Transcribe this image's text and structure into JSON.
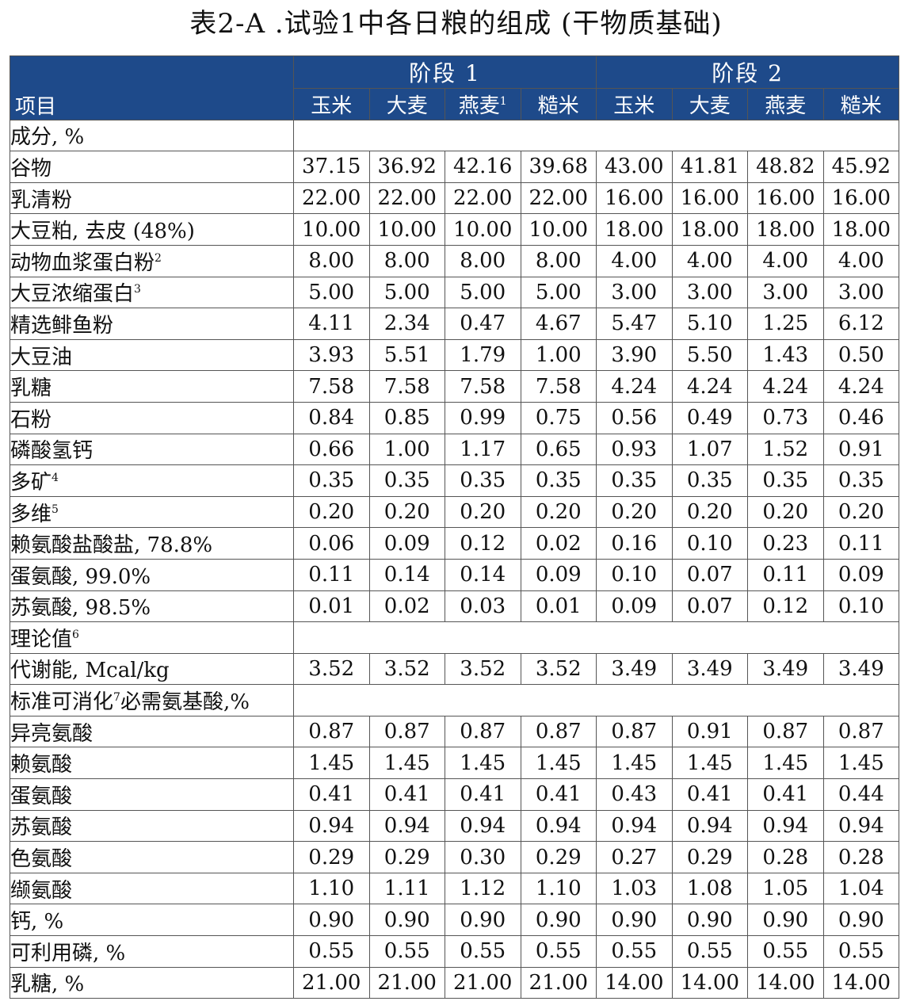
{
  "title": "表2-A .试验1中各日粮的组成 (干物质基础)",
  "header": {
    "item_label": "项目",
    "stage1": "阶段 1",
    "stage2": "阶段 2",
    "cols": [
      "玉米",
      "大麦",
      "燕麦",
      "糙米",
      "玉米",
      "大麦",
      "燕麦",
      "糙米"
    ],
    "col_sups": [
      "",
      "",
      "1",
      "",
      "",
      "",
      "",
      ""
    ]
  },
  "colors": {
    "header_bg": "#1e4a8a",
    "header_text": "#ffffff",
    "border": "#555555"
  },
  "rows": [
    {
      "label": "成分, %",
      "sup": "",
      "section": true
    },
    {
      "label": "谷物",
      "sup": "",
      "values": [
        "37.15",
        "36.92",
        "42.16",
        "39.68",
        "43.00",
        "41.81",
        "48.82",
        "45.92"
      ]
    },
    {
      "label": "乳清粉",
      "sup": "",
      "values": [
        "22.00",
        "22.00",
        "22.00",
        "22.00",
        "16.00",
        "16.00",
        "16.00",
        "16.00"
      ]
    },
    {
      "label": "大豆粕, 去皮 (48%)",
      "sup": "",
      "values": [
        "10.00",
        "10.00",
        "10.00",
        "10.00",
        "18.00",
        "18.00",
        "18.00",
        "18.00"
      ]
    },
    {
      "label": "动物血浆蛋白粉",
      "sup": "2",
      "values": [
        "8.00",
        "8.00",
        "8.00",
        "8.00",
        "4.00",
        "4.00",
        "4.00",
        "4.00"
      ]
    },
    {
      "label": "大豆浓缩蛋白",
      "sup": "3",
      "values": [
        "5.00",
        "5.00",
        "5.00",
        "5.00",
        "3.00",
        "3.00",
        "3.00",
        "3.00"
      ]
    },
    {
      "label": "精选鲱鱼粉",
      "sup": "",
      "values": [
        "4.11",
        "2.34",
        "0.47",
        "4.67",
        "5.47",
        "5.10",
        "1.25",
        "6.12"
      ]
    },
    {
      "label": "大豆油",
      "sup": "",
      "values": [
        "3.93",
        "5.51",
        "1.79",
        "1.00",
        "3.90",
        "5.50",
        "1.43",
        "0.50"
      ]
    },
    {
      "label": "乳糖",
      "sup": "",
      "values": [
        "7.58",
        "7.58",
        "7.58",
        "7.58",
        "4.24",
        "4.24",
        "4.24",
        "4.24"
      ]
    },
    {
      "label": "石粉",
      "sup": "",
      "values": [
        "0.84",
        "0.85",
        "0.99",
        "0.75",
        "0.56",
        "0.49",
        "0.73",
        "0.46"
      ]
    },
    {
      "label": "磷酸氢钙",
      "sup": "",
      "values": [
        "0.66",
        "1.00",
        "1.17",
        "0.65",
        "0.93",
        "1.07",
        "1.52",
        "0.91"
      ]
    },
    {
      "label": "多矿",
      "sup": "4",
      "values": [
        "0.35",
        "0.35",
        "0.35",
        "0.35",
        "0.35",
        "0.35",
        "0.35",
        "0.35"
      ]
    },
    {
      "label": "多维",
      "sup": "5",
      "values": [
        "0.20",
        "0.20",
        "0.20",
        "0.20",
        "0.20",
        "0.20",
        "0.20",
        "0.20"
      ]
    },
    {
      "label": "赖氨酸盐酸盐, 78.8%",
      "sup": "",
      "values": [
        "0.06",
        "0.09",
        "0.12",
        "0.02",
        "0.16",
        "0.10",
        "0.23",
        "0.11"
      ]
    },
    {
      "label": "蛋氨酸, 99.0%",
      "sup": "",
      "values": [
        "0.11",
        "0.14",
        "0.14",
        "0.09",
        "0.10",
        "0.07",
        "0.11",
        "0.09"
      ]
    },
    {
      "label": "苏氨酸, 98.5%",
      "sup": "",
      "values": [
        "0.01",
        "0.02",
        "0.03",
        "0.01",
        "0.09",
        "0.07",
        "0.12",
        "0.10"
      ]
    },
    {
      "label": "理论值",
      "sup": "6",
      "section": true
    },
    {
      "label": "代谢能, Mcal/kg",
      "sup": "",
      "values": [
        "3.52",
        "3.52",
        "3.52",
        "3.52",
        "3.49",
        "3.49",
        "3.49",
        "3.49"
      ]
    },
    {
      "label": "标准可消化",
      "sup": "7",
      "label_tail": "必需氨基酸,%",
      "section": true
    },
    {
      "label": "异亮氨酸",
      "sup": "",
      "values": [
        "0.87",
        "0.87",
        "0.87",
        "0.87",
        "0.87",
        "0.91",
        "0.87",
        "0.87"
      ]
    },
    {
      "label": "赖氨酸",
      "sup": "",
      "values": [
        "1.45",
        "1.45",
        "1.45",
        "1.45",
        "1.45",
        "1.45",
        "1.45",
        "1.45"
      ]
    },
    {
      "label": "蛋氨酸",
      "sup": "",
      "values": [
        "0.41",
        "0.41",
        "0.41",
        "0.41",
        "0.43",
        "0.41",
        "0.41",
        "0.44"
      ]
    },
    {
      "label": "苏氨酸",
      "sup": "",
      "values": [
        "0.94",
        "0.94",
        "0.94",
        "0.94",
        "0.94",
        "0.94",
        "0.94",
        "0.94"
      ]
    },
    {
      "label": "色氨酸",
      "sup": "",
      "values": [
        "0.29",
        "0.29",
        "0.30",
        "0.29",
        "0.27",
        "0.29",
        "0.28",
        "0.28"
      ]
    },
    {
      "label": "缬氨酸",
      "sup": "",
      "values": [
        "1.10",
        "1.11",
        "1.12",
        "1.10",
        "1.03",
        "1.08",
        "1.05",
        "1.04"
      ]
    },
    {
      "label": "钙, %",
      "sup": "",
      "values": [
        "0.90",
        "0.90",
        "0.90",
        "0.90",
        "0.90",
        "0.90",
        "0.90",
        "0.90"
      ]
    },
    {
      "label": "可利用磷, %",
      "sup": "",
      "values": [
        "0.55",
        "0.55",
        "0.55",
        "0.55",
        "0.55",
        "0.55",
        "0.55",
        "0.55"
      ]
    },
    {
      "label": "乳糖, %",
      "sup": "",
      "values": [
        "21.00",
        "21.00",
        "21.00",
        "21.00",
        "14.00",
        "14.00",
        "14.00",
        "14.00"
      ]
    }
  ]
}
